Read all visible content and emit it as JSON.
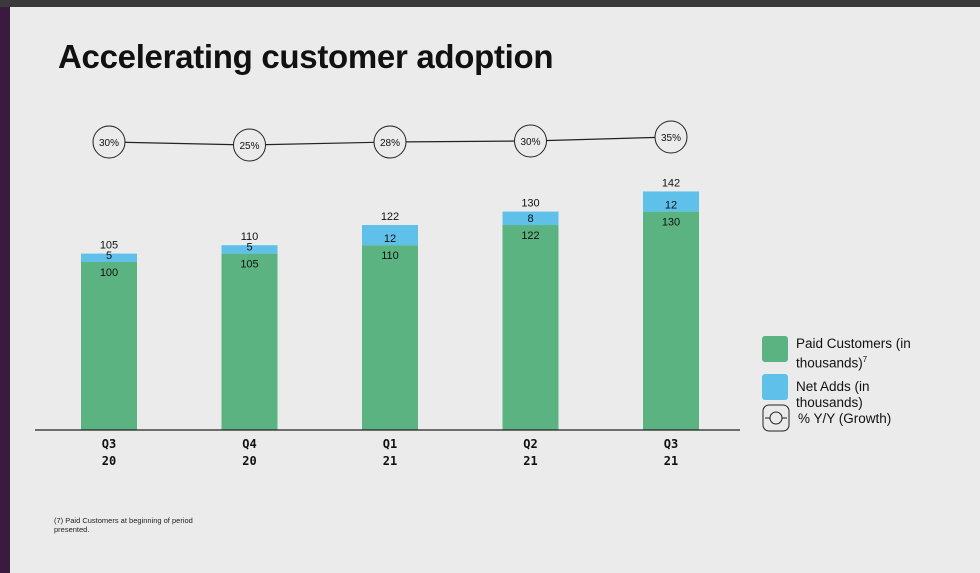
{
  "title": "Accelerating customer adoption",
  "footnote": "(7) Paid Customers at beginning of period presented.",
  "colors": {
    "paid": "#5ab381",
    "net": "#5fc1ea",
    "line": "#222222",
    "accent_strip": "#3b1a40"
  },
  "legend": [
    {
      "label": "Paid Customers (in thousands)",
      "sup": "7",
      "color": "#5ab381",
      "icon": "green-swatch"
    },
    {
      "label": "Net Adds (in thousands)",
      "sup": "",
      "color": "#5fc1ea",
      "icon": "blue-swatch"
    },
    {
      "label": "% Y/Y (Growth)",
      "sup": "",
      "color": "#222222",
      "icon": "growth-marker-icon"
    }
  ],
  "chart_data": {
    "type": "bar",
    "stacked": true,
    "categories": [
      [
        "Q3",
        "20"
      ],
      [
        "Q4",
        "20"
      ],
      [
        "Q1",
        "21"
      ],
      [
        "Q2",
        "21"
      ],
      [
        "Q3",
        "21"
      ]
    ],
    "series": [
      {
        "name": "Paid Customers (in thousands)",
        "values": [
          100,
          105,
          110,
          122,
          130
        ]
      },
      {
        "name": "Net Adds (in thousands)",
        "values": [
          5,
          5,
          12,
          8,
          12
        ]
      }
    ],
    "totals": [
      105,
      110,
      122,
      130,
      142
    ],
    "growth": {
      "name": "% Y/Y (Growth)",
      "values": [
        30,
        25,
        28,
        30,
        35
      ],
      "labels": [
        "30%",
        "25%",
        "28%",
        "30%",
        "35%"
      ]
    },
    "ylim": [
      0,
      160
    ],
    "grid": false,
    "legend_position": "right"
  }
}
